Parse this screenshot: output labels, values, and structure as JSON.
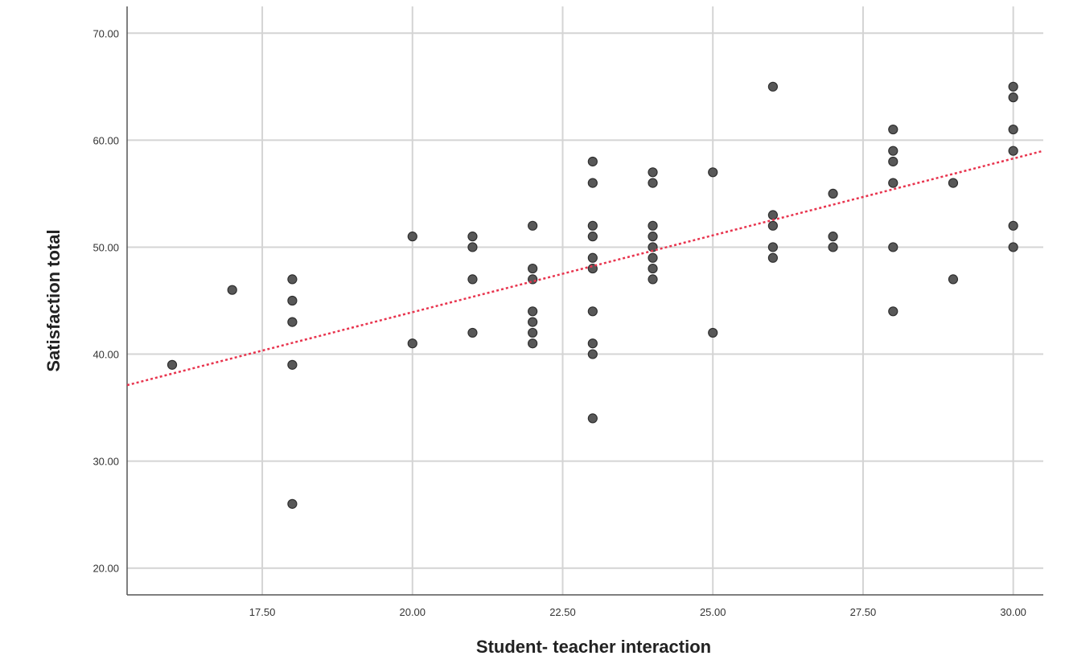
{
  "chart_data": {
    "type": "scatter",
    "xlabel": "Student- teacher interaction",
    "ylabel": "Satisfaction  total",
    "xlim": [
      15.25,
      30.5
    ],
    "ylim": [
      17.5,
      72.5
    ],
    "x_ticks": [
      17.5,
      20,
      22.5,
      25,
      27.5,
      30
    ],
    "x_tick_labels": [
      "17.50",
      "20.00",
      "22.50",
      "25.00",
      "27.50",
      "30.00"
    ],
    "y_ticks": [
      20,
      30,
      40,
      50,
      60,
      70
    ],
    "y_tick_labels": [
      "20.00",
      "30.00",
      "40.00",
      "50.00",
      "60.00",
      "70.00"
    ],
    "grid": true,
    "colors": {
      "points": "#585858",
      "fit_line": "#e8344e",
      "grid": "#d4d4d4"
    },
    "points": [
      {
        "x": 16,
        "y": 39
      },
      {
        "x": 17,
        "y": 46
      },
      {
        "x": 18,
        "y": 47
      },
      {
        "x": 18,
        "y": 45
      },
      {
        "x": 18,
        "y": 43
      },
      {
        "x": 18,
        "y": 39
      },
      {
        "x": 18,
        "y": 26
      },
      {
        "x": 20,
        "y": 51
      },
      {
        "x": 20,
        "y": 41
      },
      {
        "x": 21,
        "y": 51
      },
      {
        "x": 21,
        "y": 50
      },
      {
        "x": 21,
        "y": 47
      },
      {
        "x": 21,
        "y": 42
      },
      {
        "x": 22,
        "y": 52
      },
      {
        "x": 22,
        "y": 48
      },
      {
        "x": 22,
        "y": 47
      },
      {
        "x": 22,
        "y": 44
      },
      {
        "x": 22,
        "y": 43
      },
      {
        "x": 22,
        "y": 42
      },
      {
        "x": 22,
        "y": 41
      },
      {
        "x": 23,
        "y": 58
      },
      {
        "x": 23,
        "y": 56
      },
      {
        "x": 23,
        "y": 52
      },
      {
        "x": 23,
        "y": 51
      },
      {
        "x": 23,
        "y": 49
      },
      {
        "x": 23,
        "y": 48
      },
      {
        "x": 23,
        "y": 44
      },
      {
        "x": 23,
        "y": 41
      },
      {
        "x": 23,
        "y": 40
      },
      {
        "x": 23,
        "y": 34
      },
      {
        "x": 24,
        "y": 57
      },
      {
        "x": 24,
        "y": 56
      },
      {
        "x": 24,
        "y": 52
      },
      {
        "x": 24,
        "y": 51
      },
      {
        "x": 24,
        "y": 50
      },
      {
        "x": 24,
        "y": 49
      },
      {
        "x": 24,
        "y": 48
      },
      {
        "x": 24,
        "y": 47
      },
      {
        "x": 25,
        "y": 57
      },
      {
        "x": 25,
        "y": 42
      },
      {
        "x": 26,
        "y": 65
      },
      {
        "x": 26,
        "y": 53
      },
      {
        "x": 26,
        "y": 52
      },
      {
        "x": 26,
        "y": 50
      },
      {
        "x": 26,
        "y": 49
      },
      {
        "x": 27,
        "y": 55
      },
      {
        "x": 27,
        "y": 51
      },
      {
        "x": 27,
        "y": 50
      },
      {
        "x": 28,
        "y": 61
      },
      {
        "x": 28,
        "y": 59
      },
      {
        "x": 28,
        "y": 58
      },
      {
        "x": 28,
        "y": 56
      },
      {
        "x": 28,
        "y": 50
      },
      {
        "x": 28,
        "y": 44
      },
      {
        "x": 29,
        "y": 56
      },
      {
        "x": 29,
        "y": 47
      },
      {
        "x": 30,
        "y": 65
      },
      {
        "x": 30,
        "y": 64
      },
      {
        "x": 30,
        "y": 61
      },
      {
        "x": 30,
        "y": 59
      },
      {
        "x": 30,
        "y": 52
      },
      {
        "x": 30,
        "y": 50
      }
    ],
    "fit_line": {
      "type": "linear",
      "from": {
        "x": 15.25,
        "y": 37.1
      },
      "to": {
        "x": 30.5,
        "y": 59.0
      }
    }
  }
}
